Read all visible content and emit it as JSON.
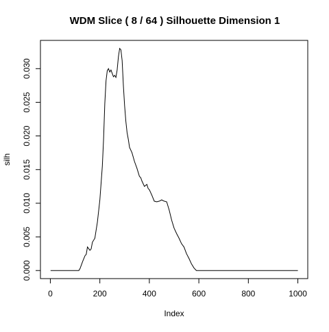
{
  "chart_data": {
    "type": "line",
    "title": "WDM Slice ( 8 / 64 )  Silhouette Dimension 1",
    "xlabel": "Index",
    "ylabel": "silh",
    "xlim": [
      -40,
      1040
    ],
    "ylim": [
      -0.0012,
      0.0342
    ],
    "x_ticks": [
      0,
      200,
      400,
      600,
      800,
      1000
    ],
    "y_ticks": [
      0.0,
      0.005,
      0.01,
      0.015,
      0.02,
      0.025,
      0.03
    ],
    "x_tick_labels": [
      "0",
      "200",
      "400",
      "600",
      "800",
      "1000"
    ],
    "y_tick_labels": [
      "0.000",
      "0.005",
      "0.010",
      "0.015",
      "0.020",
      "0.025",
      "0.030"
    ],
    "grid": false,
    "line_color": "#000000",
    "series": [
      {
        "x": [
          1,
          115,
          120,
          130,
          140,
          145,
          150,
          160,
          165,
          170,
          180,
          190,
          200,
          210,
          215,
          220,
          225,
          230,
          235,
          240,
          245,
          250,
          255,
          260,
          265,
          270,
          275,
          280,
          285,
          290,
          295,
          300,
          305,
          310,
          315,
          320,
          330,
          340,
          350,
          360,
          365,
          370,
          380,
          390,
          395,
          400,
          410,
          420,
          430,
          440,
          450,
          460,
          470,
          480,
          490,
          500,
          510,
          520,
          530,
          540,
          550,
          560,
          570,
          580,
          590,
          1000
        ],
        "y": [
          0,
          0,
          0.0003,
          0.0013,
          0.0022,
          0.0024,
          0.0035,
          0.003,
          0.0032,
          0.0042,
          0.0048,
          0.0072,
          0.0105,
          0.0155,
          0.0195,
          0.0248,
          0.0282,
          0.0297,
          0.03,
          0.0295,
          0.0298,
          0.0293,
          0.0288,
          0.029,
          0.0287,
          0.0298,
          0.0318,
          0.033,
          0.0328,
          0.0312,
          0.0275,
          0.0245,
          0.0222,
          0.0205,
          0.0195,
          0.0183,
          0.0175,
          0.0162,
          0.0152,
          0.014,
          0.0138,
          0.0133,
          0.0125,
          0.0128,
          0.0122,
          0.012,
          0.0112,
          0.0103,
          0.0102,
          0.0103,
          0.0105,
          0.0103,
          0.0102,
          0.009,
          0.0075,
          0.0063,
          0.0055,
          0.0048,
          0.004,
          0.0035,
          0.0025,
          0.0018,
          0.001,
          0.0004,
          0,
          0
        ]
      }
    ]
  }
}
